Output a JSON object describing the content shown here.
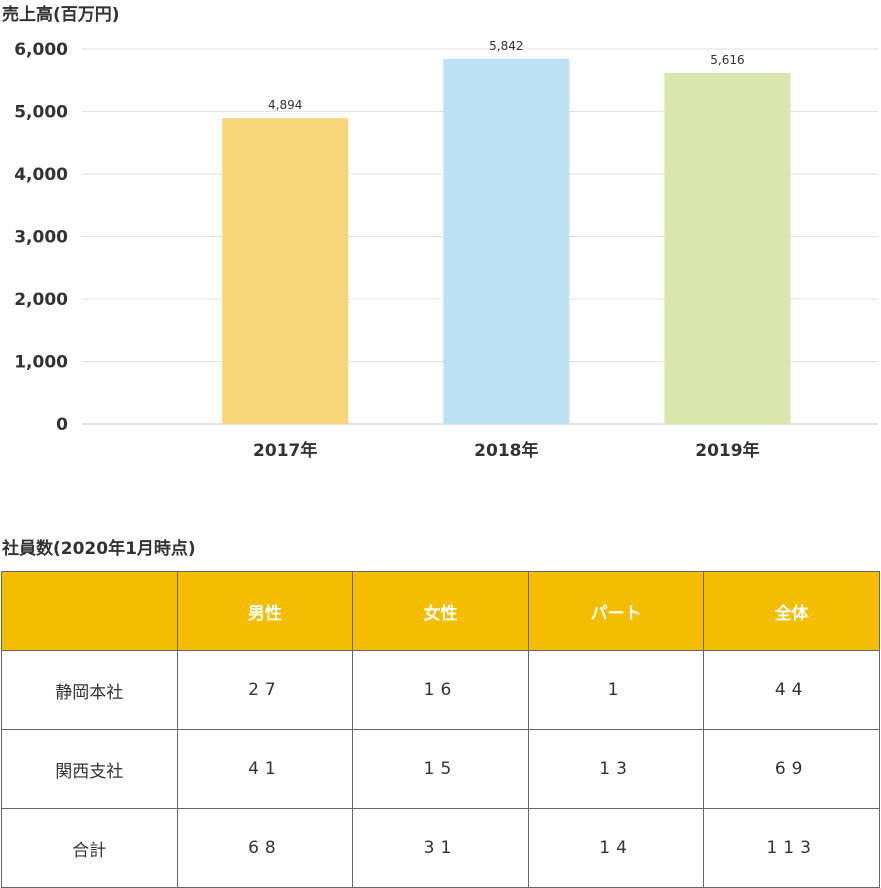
{
  "chart_title": "売上高(百万円)",
  "chart_data": {
    "type": "bar",
    "categories": [
      "2017年",
      "2018年",
      "2019年"
    ],
    "values": [
      4894,
      5842,
      5616
    ],
    "value_labels": [
      "4,894",
      "5,842",
      "5,616"
    ],
    "colors": [
      "#f9d57a",
      "#bde1f6",
      "#d9e6ad"
    ],
    "ylim": [
      0,
      6000
    ],
    "yticks": [
      0,
      1000,
      2000,
      3000,
      4000,
      5000,
      6000
    ],
    "ytick_labels": [
      "0",
      "1,000",
      "2,000",
      "3,000",
      "4,000",
      "5,000",
      "6,000"
    ],
    "grid": true
  },
  "table": {
    "title": "社員数(2020年1月時点)",
    "headers": [
      "",
      "男性",
      "女性",
      "パート",
      "全体"
    ],
    "rows": [
      [
        "静岡本社",
        "27",
        "16",
        "1",
        "44"
      ],
      [
        "関西支社",
        "41",
        "15",
        "13",
        "69"
      ],
      [
        "合計",
        "68",
        "31",
        "14",
        "113"
      ]
    ],
    "header_color": "#f5bd00"
  }
}
